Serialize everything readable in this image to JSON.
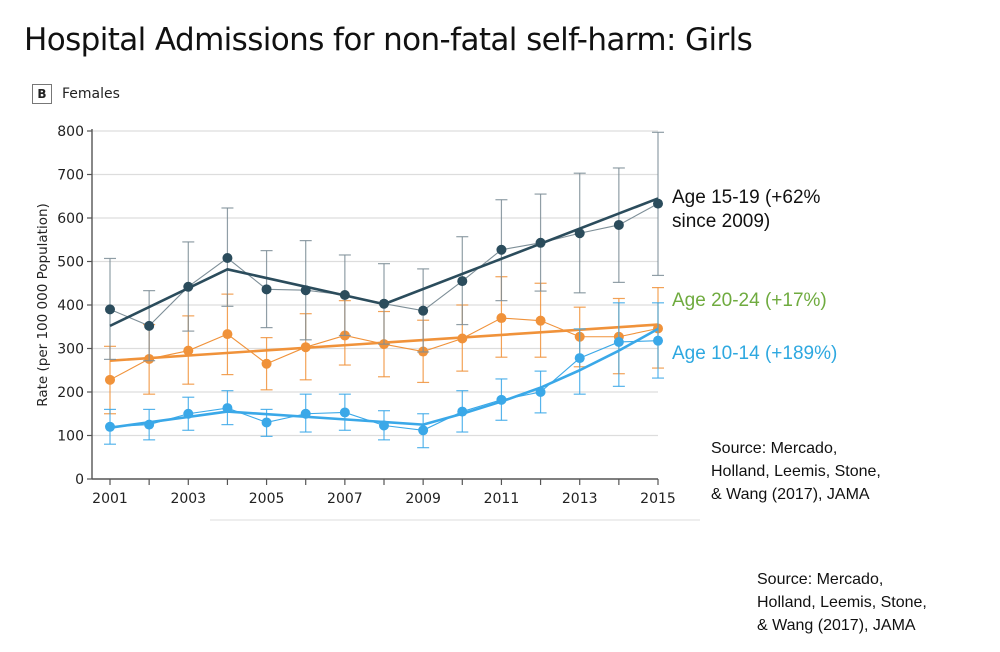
{
  "title": "Hospital Admissions for non-fatal self-harm: Girls",
  "panel": {
    "letter": "B",
    "label": "Females"
  },
  "annotations": {
    "age_15_19_line1": "Age 15-19 (+62%",
    "age_15_19_line2": "since 2009)",
    "age_20_24": "Age 20-24  (+17%)",
    "age_10_14": "Age 10-14  (+189%)"
  },
  "sources": [
    {
      "lines": [
        "Source: Mercado,",
        "Holland, Leemis, Stone,",
        "& Wang (2017), JAMA"
      ]
    },
    {
      "lines": [
        "Source: Mercado,",
        "Holland, Leemis, Stone,",
        "& Wang (2017), JAMA"
      ]
    }
  ],
  "colors": {
    "age_15_19": "#2b4c5c",
    "age_15_19_err": "#7d8e97",
    "age_20_24": "#f0923a",
    "age_10_14": "#3aa8e8",
    "grid": "#dddddd",
    "axis": "#555555"
  },
  "chart_data": {
    "type": "line",
    "title": "Females",
    "xlabel": "",
    "ylabel": "Rate (per 100 000 Population)",
    "x": [
      2001,
      2002,
      2003,
      2004,
      2005,
      2006,
      2007,
      2008,
      2009,
      2010,
      2011,
      2012,
      2013,
      2014,
      2015
    ],
    "xticks": [
      2001,
      2003,
      2005,
      2007,
      2009,
      2011,
      2013,
      2015
    ],
    "xlim": [
      2001,
      2015
    ],
    "ylim": [
      0,
      800
    ],
    "yticks": [
      0,
      100,
      200,
      300,
      400,
      500,
      600,
      700,
      800
    ],
    "grid": true,
    "legend": "right-side inline annotations",
    "series": [
      {
        "name": "Age 15-19",
        "key": "age_15_19",
        "values": [
          390,
          352,
          442,
          508,
          436,
          434,
          423,
          403,
          387,
          455,
          527,
          543,
          565,
          584,
          633
        ],
        "err_high": [
          507,
          433,
          545,
          623,
          525,
          548,
          515,
          495,
          483,
          557,
          642,
          655,
          703,
          715,
          797
        ],
        "err_low": [
          275,
          272,
          340,
          397,
          348,
          320,
          330,
          310,
          292,
          355,
          410,
          432,
          428,
          452,
          468
        ],
        "trend_x": [
          2001,
          2004,
          2008,
          2015
        ],
        "trend_values": [
          352,
          482,
          402,
          645
        ]
      },
      {
        "name": "Age 20-24",
        "key": "age_20_24",
        "values": [
          228,
          276,
          295,
          333,
          265,
          303,
          330,
          310,
          293,
          323,
          370,
          364,
          327,
          327,
          346
        ],
        "err_high": [
          305,
          355,
          375,
          425,
          325,
          380,
          410,
          385,
          365,
          400,
          465,
          450,
          395,
          415,
          440
        ],
        "err_low": [
          150,
          195,
          218,
          240,
          205,
          228,
          262,
          235,
          222,
          248,
          280,
          280,
          258,
          242,
          255
        ],
        "trend_x": [
          2001,
          2015
        ],
        "trend_values": [
          272,
          355
        ]
      },
      {
        "name": "Age 10-14",
        "key": "age_10_14",
        "values": [
          120,
          125,
          150,
          163,
          130,
          150,
          153,
          123,
          112,
          155,
          182,
          200,
          278,
          315,
          318
        ],
        "err_high": [
          160,
          160,
          188,
          203,
          160,
          195,
          195,
          157,
          150,
          203,
          230,
          248,
          345,
          405,
          405
        ],
        "err_low": [
          80,
          90,
          112,
          125,
          98,
          108,
          112,
          90,
          72,
          108,
          135,
          152,
          195,
          213,
          232
        ],
        "trend_x": [
          2001,
          2004,
          2009,
          2010,
          2011,
          2012,
          2013,
          2014,
          2015
        ],
        "trend_values": [
          118,
          155,
          125,
          150,
          178,
          210,
          250,
          295,
          345
        ]
      }
    ]
  }
}
